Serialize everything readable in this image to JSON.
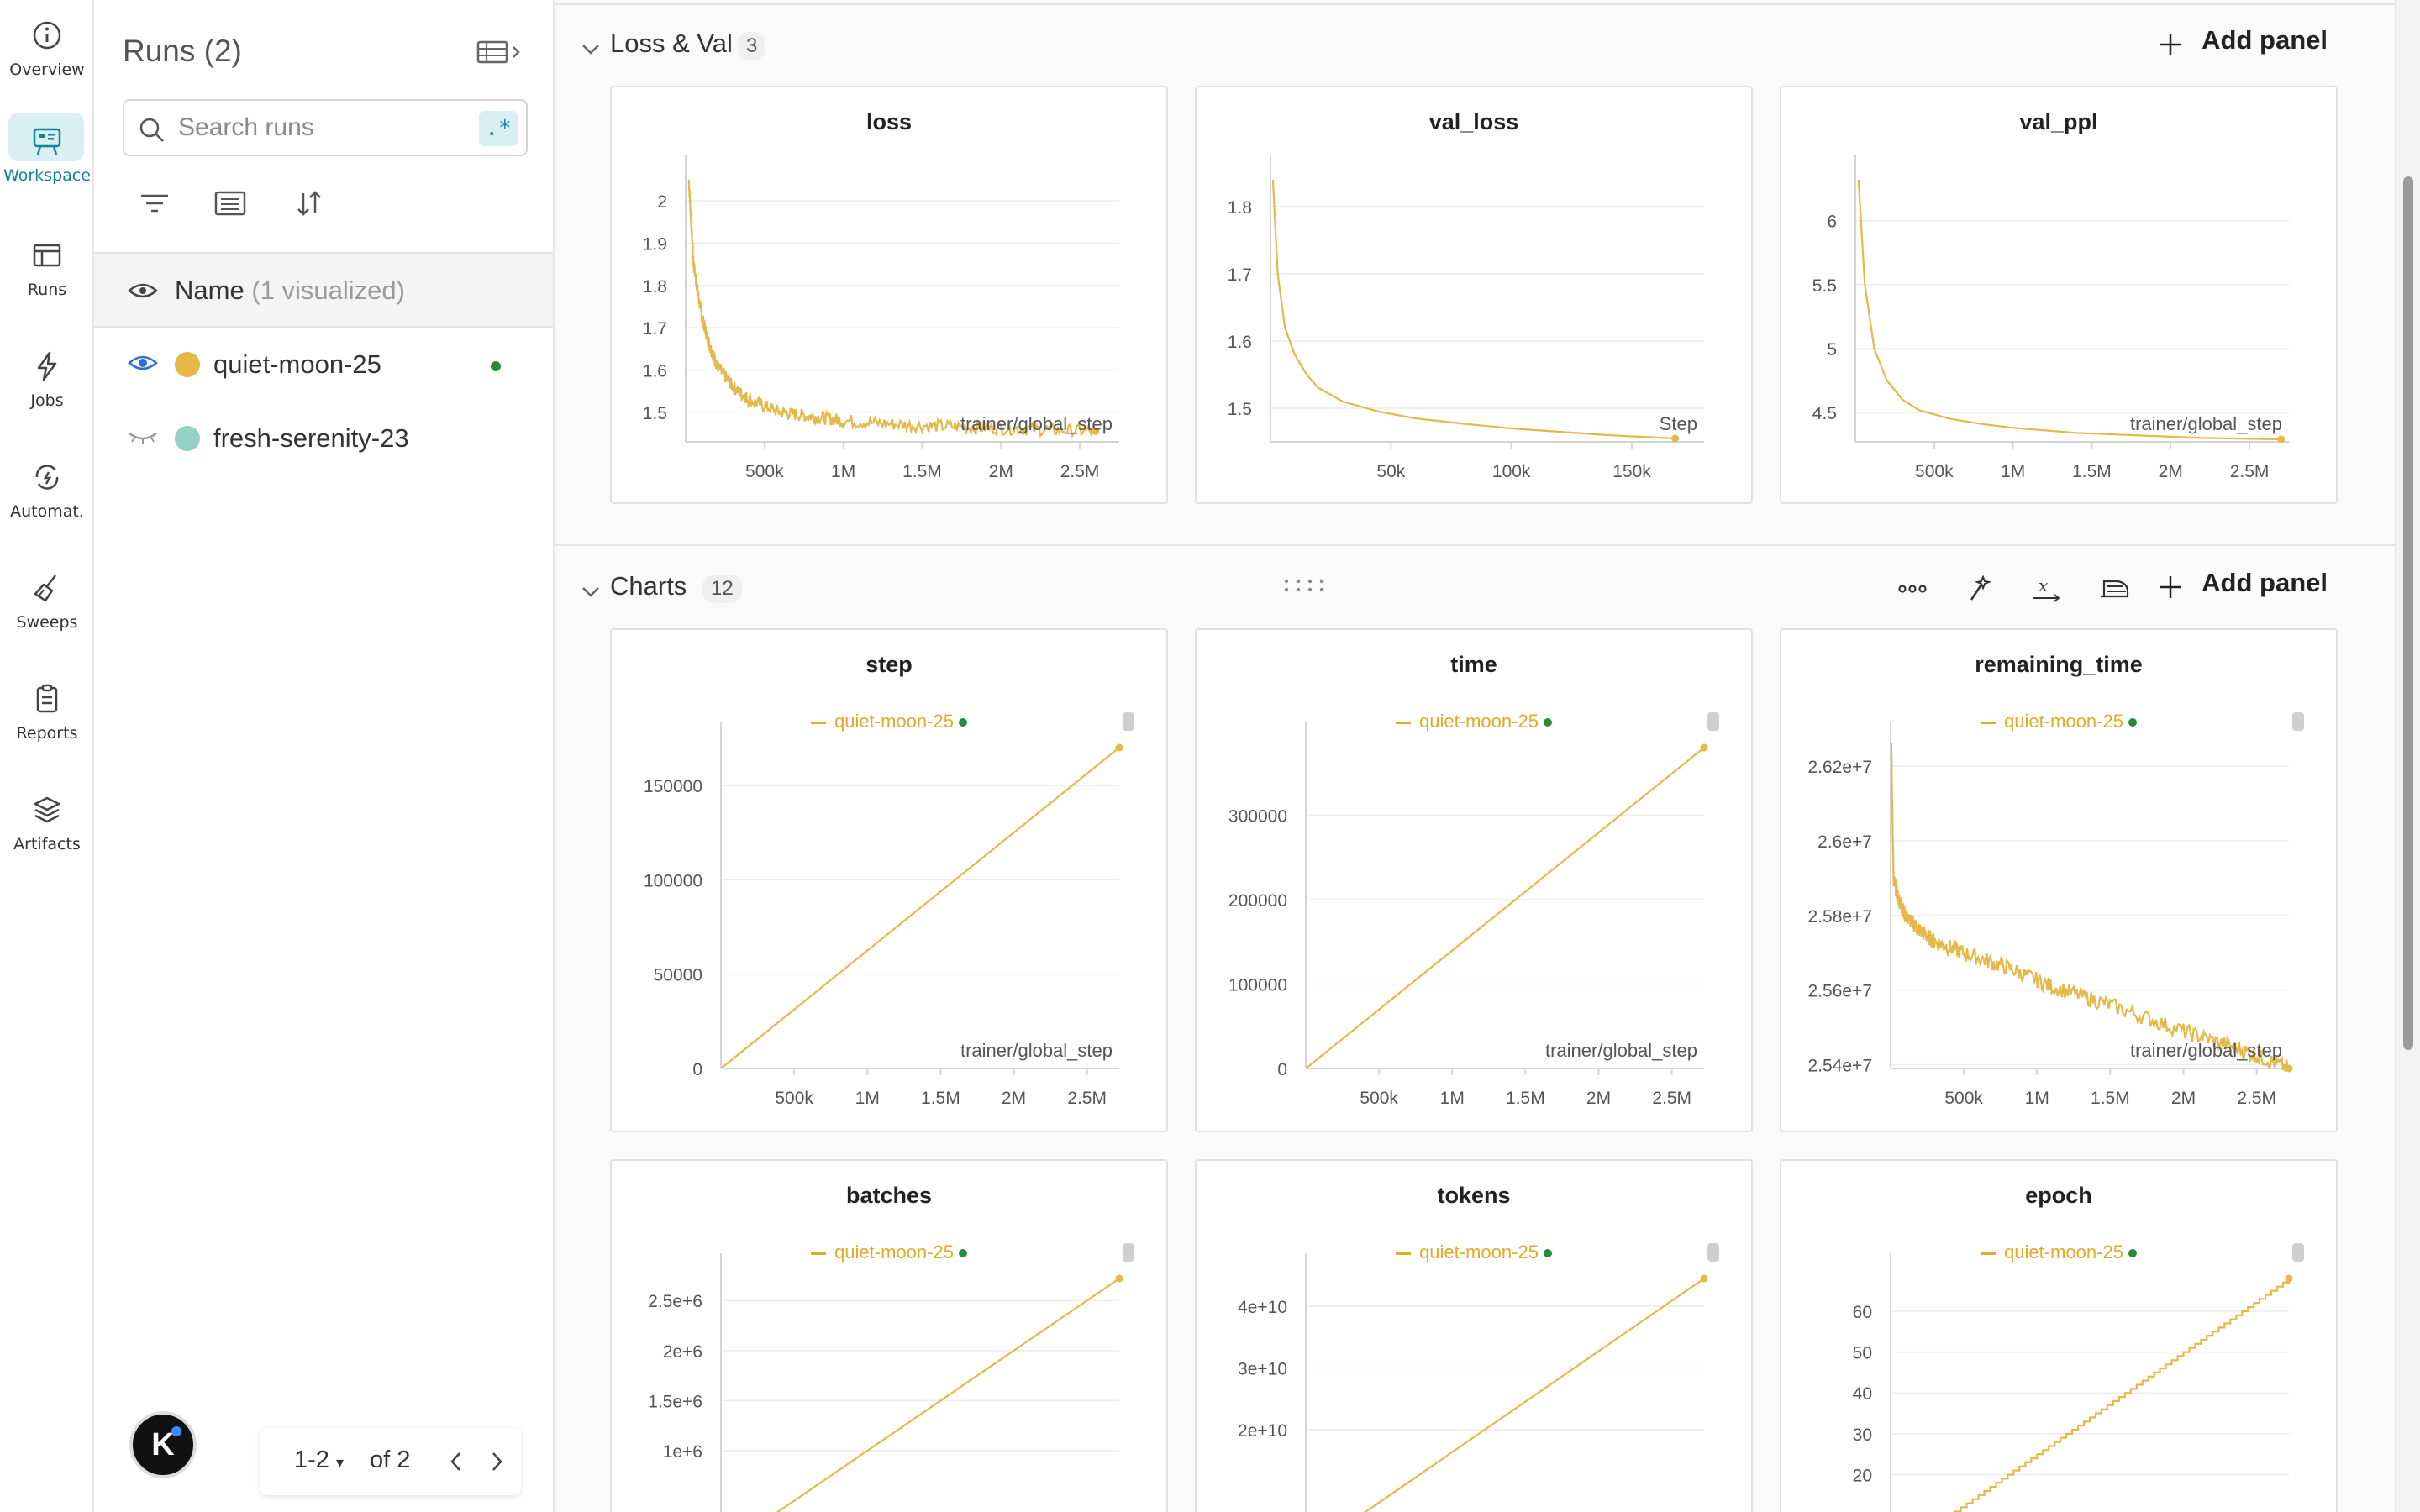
{
  "nav": {
    "items": [
      {
        "label": "Overview",
        "icon": "info-icon"
      },
      {
        "label": "Workspace",
        "icon": "workspace-icon",
        "active": true
      },
      {
        "label": "Runs",
        "icon": "table-icon"
      },
      {
        "label": "Jobs",
        "icon": "bolt-icon"
      },
      {
        "label": "Automat.",
        "icon": "automation-icon"
      },
      {
        "label": "Sweeps",
        "icon": "broom-icon"
      },
      {
        "label": "Reports",
        "icon": "clipboard-icon"
      },
      {
        "label": "Artifacts",
        "icon": "layers-icon"
      }
    ],
    "accent": "#13829a"
  },
  "sidebar": {
    "title": "Runs (2)",
    "search": {
      "placeholder": "Search runs",
      "value": "",
      "regex_label": ".*"
    },
    "name_header": {
      "label": "Name",
      "visualized": "(1 visualized)"
    },
    "runs": [
      {
        "name": "quiet-moon-25",
        "color": "#e6b84a",
        "visible": true,
        "running": true
      },
      {
        "name": "fresh-serenity-23",
        "color": "#93d1c3",
        "visible": false,
        "running": false
      }
    ],
    "pager": {
      "range": "1-2",
      "of": "of 2"
    },
    "avatar_letter": "K"
  },
  "sections": [
    {
      "title": "Loss & Val",
      "count": "3",
      "add_label": "Add panel"
    },
    {
      "title": "Charts",
      "count": "12",
      "add_label": "Add panel"
    }
  ],
  "run_legend": "quiet-moon-25",
  "line_color": "#e6b84a",
  "chart_data": [
    {
      "type": "line",
      "title": "loss",
      "xlabel": "trainer/global_step",
      "x_ticks": [
        "500k",
        "1M",
        "1.5M",
        "2M",
        "2.5M"
      ],
      "y_ticks": [
        "2",
        "1.9",
        "1.8",
        "1.7",
        "1.6",
        "1.5"
      ],
      "ylim": [
        1.43,
        2.05
      ],
      "xlim": [
        0,
        2750000
      ],
      "series": [
        {
          "x": [
            20000,
            50000,
            100000,
            150000,
            200000,
            300000,
            400000,
            600000,
            800000,
            1000000,
            1400000,
            1800000,
            2200000,
            2600000
          ],
          "values": [
            2.05,
            1.85,
            1.73,
            1.66,
            1.61,
            1.56,
            1.53,
            1.5,
            1.49,
            1.48,
            1.47,
            1.465,
            1.46,
            1.455
          ]
        }
      ],
      "noise": true
    },
    {
      "type": "line",
      "title": "val_loss",
      "xlabel": "Step",
      "x_ticks": [
        "50k",
        "100k",
        "150k"
      ],
      "y_ticks": [
        "1.8",
        "1.7",
        "1.6",
        "1.5"
      ],
      "ylim": [
        1.45,
        1.84
      ],
      "xlim": [
        0,
        180000
      ],
      "series": [
        {
          "x": [
            1000,
            3000,
            6000,
            10000,
            15000,
            20000,
            30000,
            45000,
            60000,
            80000,
            100000,
            120000,
            140000,
            168000
          ],
          "values": [
            1.84,
            1.7,
            1.62,
            1.58,
            1.55,
            1.53,
            1.51,
            1.495,
            1.485,
            1.477,
            1.47,
            1.465,
            1.46,
            1.455
          ]
        }
      ]
    },
    {
      "type": "line",
      "title": "val_ppl",
      "xlabel": "trainer/global_step",
      "x_ticks": [
        "500k",
        "1M",
        "1.5M",
        "2M",
        "2.5M"
      ],
      "y_ticks": [
        "6",
        "5.5",
        "5",
        "4.5"
      ],
      "ylim": [
        4.27,
        6.32
      ],
      "xlim": [
        0,
        2750000
      ],
      "series": [
        {
          "x": [
            20000,
            60000,
            120000,
            200000,
            300000,
            400000,
            600000,
            800000,
            1000000,
            1400000,
            1800000,
            2200000,
            2700000
          ],
          "values": [
            6.32,
            5.5,
            5.0,
            4.75,
            4.6,
            4.52,
            4.45,
            4.41,
            4.38,
            4.34,
            4.32,
            4.3,
            4.29
          ]
        }
      ]
    },
    {
      "type": "line",
      "title": "step",
      "xlabel": "trainer/global_step",
      "x_ticks": [
        "500k",
        "1M",
        "1.5M",
        "2M",
        "2.5M"
      ],
      "y_ticks": [
        "150000",
        "100000",
        "50000",
        "0"
      ],
      "ylim": [
        0,
        170000
      ],
      "xlim": [
        0,
        2720000
      ],
      "series": [
        {
          "x": [
            0,
            2720000
          ],
          "values": [
            0,
            170000
          ]
        }
      ]
    },
    {
      "type": "line",
      "title": "time",
      "xlabel": "trainer/global_step",
      "x_ticks": [
        "500k",
        "1M",
        "1.5M",
        "2M",
        "2.5M"
      ],
      "y_ticks": [
        "300000",
        "200000",
        "100000",
        "0"
      ],
      "ylim": [
        0,
        380000
      ],
      "xlim": [
        0,
        2720000
      ],
      "series": [
        {
          "x": [
            0,
            2720000
          ],
          "values": [
            0,
            380000
          ]
        }
      ]
    },
    {
      "type": "line",
      "title": "remaining_time",
      "xlabel": "trainer/global_step",
      "x_ticks": [
        "500k",
        "1M",
        "1.5M",
        "2M",
        "2.5M"
      ],
      "y_ticks": [
        "2.62e+7",
        "2.6e+7",
        "2.58e+7",
        "2.56e+7",
        "2.54e+7"
      ],
      "ylim": [
        25390000,
        26250000
      ],
      "xlim": [
        0,
        2720000
      ],
      "series": [
        {
          "x": [
            5000,
            20000,
            50000,
            100000,
            200000,
            300000,
            500000,
            800000,
            1100000,
            1500000,
            2000000,
            2400000,
            2720000
          ],
          "values": [
            26250000,
            25900000,
            25850000,
            25800000,
            25760000,
            25730000,
            25700000,
            25660000,
            25610000,
            25560000,
            25490000,
            25440000,
            25390000
          ]
        }
      ],
      "noise": true
    },
    {
      "type": "line",
      "title": "batches",
      "x_ticks": [],
      "y_ticks": [
        "2.5e+6",
        "2e+6",
        "1.5e+6",
        "1e+6"
      ],
      "ylim": [
        -300000,
        2720000
      ],
      "xlim": [
        0,
        2720000
      ],
      "series": [
        {
          "x": [
            0,
            2720000
          ],
          "values": [
            0,
            2720000
          ]
        }
      ]
    },
    {
      "type": "line",
      "title": "tokens",
      "x_ticks": [],
      "y_ticks": [
        "4e+10",
        "3e+10",
        "2e+10"
      ],
      "ylim": [
        -4500000000,
        44500000000
      ],
      "xlim": [
        0,
        2720000
      ],
      "series": [
        {
          "x": [
            0,
            2720000
          ],
          "values": [
            0,
            44500000000
          ]
        }
      ]
    },
    {
      "type": "line",
      "title": "epoch",
      "x_ticks": [],
      "y_ticks": [
        "60",
        "50",
        "40",
        "30",
        "20"
      ],
      "ylim": [
        -6,
        68
      ],
      "xlim": [
        0,
        2720000
      ],
      "series": [
        {
          "x": [
            0,
            2720000
          ],
          "values": [
            0,
            68
          ]
        }
      ],
      "steps": true
    }
  ]
}
